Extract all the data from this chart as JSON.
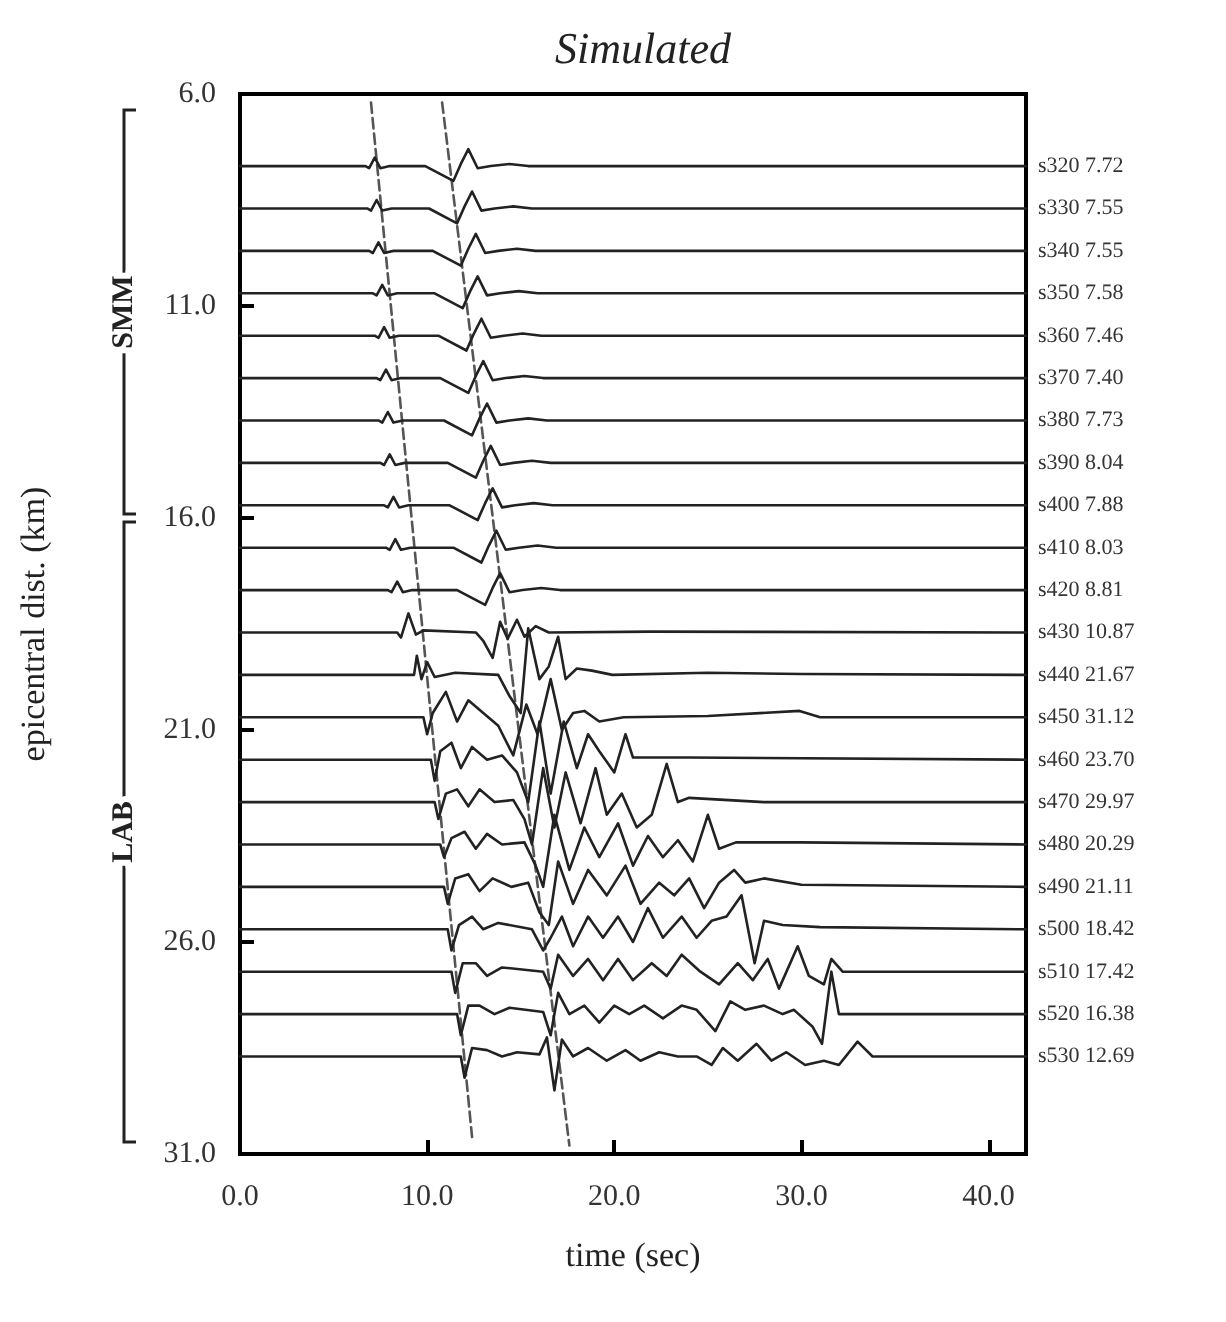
{
  "chart_data": {
    "type": "line",
    "title": "Simulated",
    "xlabel": "time (sec)",
    "ylabel": "epicentral dist. (km)",
    "xlim": [
      0,
      42
    ],
    "xticks": [
      {
        "value": 0,
        "label": "0.0"
      },
      {
        "value": 10,
        "label": "10.0"
      },
      {
        "value": 20,
        "label": "20.0"
      },
      {
        "value": 30,
        "label": "30.0"
      },
      {
        "value": 40,
        "label": "40.0"
      }
    ],
    "ylim": [
      31,
      6
    ],
    "yticks": [
      {
        "value": 6,
        "label": "6.0"
      },
      {
        "value": 11,
        "label": "11.0"
      },
      {
        "value": 16,
        "label": "16.0"
      },
      {
        "value": 21,
        "label": "21.0"
      },
      {
        "value": 26,
        "label": "26.0"
      },
      {
        "value": 31,
        "label": "31.0"
      }
    ],
    "marker": "none",
    "line_style": "solid",
    "annotations": [
      "SMM",
      "LAB"
    ],
    "series": [
      {
        "name": "s320 7.72",
        "color": "#222222",
        "x": [
          0,
          6.7,
          6.9,
          7.2,
          7.5,
          8.0,
          9.9,
          11.4,
          11.8,
          12.2,
          12.7,
          13.4,
          14.4,
          15.4,
          42
        ],
        "values": [
          7.7,
          7.7,
          7.75,
          7.5,
          7.75,
          7.7,
          7.7,
          8.05,
          7.65,
          7.3,
          7.75,
          7.7,
          7.65,
          7.7,
          7.7
        ]
      },
      {
        "name": "s330 7.55",
        "color": "#222222",
        "x": [
          0,
          6.8,
          7.0,
          7.3,
          7.6,
          8.1,
          10.1,
          11.6,
          12.0,
          12.4,
          12.9,
          13.6,
          14.6,
          15.6,
          42
        ],
        "values": [
          8.7,
          8.7,
          8.75,
          8.5,
          8.75,
          8.7,
          8.7,
          9.05,
          8.65,
          8.3,
          8.75,
          8.7,
          8.65,
          8.7,
          8.7
        ]
      },
      {
        "name": "s340 7.55",
        "color": "#222222",
        "x": [
          0,
          6.9,
          7.1,
          7.4,
          7.7,
          8.2,
          10.3,
          11.8,
          12.2,
          12.6,
          13.1,
          13.8,
          14.8,
          15.8,
          42
        ],
        "values": [
          9.7,
          9.7,
          9.75,
          9.5,
          9.75,
          9.7,
          9.7,
          10.05,
          9.65,
          9.3,
          9.75,
          9.7,
          9.65,
          9.7,
          9.7
        ]
      },
      {
        "name": "s350 7.58",
        "color": "#222222",
        "x": [
          0,
          7.1,
          7.3,
          7.6,
          7.9,
          8.4,
          10.4,
          11.9,
          12.3,
          12.7,
          13.2,
          13.9,
          14.9,
          15.9,
          42
        ],
        "values": [
          10.7,
          10.7,
          10.75,
          10.5,
          10.75,
          10.7,
          10.7,
          11.05,
          10.65,
          10.3,
          10.75,
          10.7,
          10.65,
          10.7,
          10.7
        ]
      },
      {
        "name": "s360 7.46",
        "color": "#222222",
        "x": [
          0,
          7.2,
          7.4,
          7.7,
          8.0,
          8.5,
          10.6,
          12.1,
          12.5,
          12.9,
          13.4,
          14.1,
          15.1,
          16.1,
          42
        ],
        "values": [
          11.7,
          11.7,
          11.75,
          11.5,
          11.75,
          11.7,
          11.7,
          12.05,
          11.65,
          11.3,
          11.75,
          11.7,
          11.65,
          11.7,
          11.7
        ]
      },
      {
        "name": "s370 7.40",
        "color": "#222222",
        "x": [
          0,
          7.3,
          7.5,
          7.8,
          8.1,
          8.6,
          10.7,
          12.2,
          12.6,
          13.0,
          13.5,
          14.2,
          15.2,
          16.2,
          42
        ],
        "values": [
          12.7,
          12.7,
          12.75,
          12.5,
          12.75,
          12.7,
          12.7,
          13.05,
          12.65,
          12.3,
          12.75,
          12.7,
          12.65,
          12.7,
          12.7
        ]
      },
      {
        "name": "s380 7.73",
        "color": "#222222",
        "x": [
          0,
          7.4,
          7.6,
          7.9,
          8.2,
          8.7,
          10.9,
          12.4,
          12.8,
          13.2,
          13.7,
          14.4,
          15.4,
          16.4,
          42
        ],
        "values": [
          13.7,
          13.7,
          13.75,
          13.5,
          13.75,
          13.7,
          13.7,
          14.05,
          13.65,
          13.3,
          13.75,
          13.7,
          13.65,
          13.7,
          13.7
        ]
      },
      {
        "name": "s390 8.04",
        "color": "#222222",
        "x": [
          0,
          7.5,
          7.7,
          8.0,
          8.3,
          8.8,
          11.1,
          12.6,
          13.0,
          13.4,
          13.9,
          14.6,
          15.6,
          16.6,
          42
        ],
        "values": [
          14.7,
          14.7,
          14.75,
          14.5,
          14.75,
          14.7,
          14.7,
          15.05,
          14.65,
          14.3,
          14.75,
          14.7,
          14.65,
          14.7,
          14.7
        ]
      },
      {
        "name": "s400 7.88",
        "color": "#222222",
        "x": [
          0,
          7.7,
          7.9,
          8.2,
          8.5,
          9.0,
          11.2,
          12.7,
          13.1,
          13.5,
          14.0,
          14.7,
          15.7,
          16.7,
          42
        ],
        "values": [
          15.7,
          15.7,
          15.75,
          15.5,
          15.75,
          15.7,
          15.7,
          16.05,
          15.65,
          15.3,
          15.75,
          15.7,
          15.65,
          15.7,
          15.7
        ]
      },
      {
        "name": "s410 8.03",
        "color": "#222222",
        "x": [
          0,
          7.8,
          8.0,
          8.3,
          8.6,
          9.1,
          11.4,
          12.9,
          13.3,
          13.7,
          14.2,
          14.9,
          15.9,
          16.9,
          42
        ],
        "values": [
          16.7,
          16.7,
          16.75,
          16.5,
          16.75,
          16.7,
          16.7,
          17.05,
          16.65,
          16.3,
          16.75,
          16.7,
          16.65,
          16.7,
          16.7
        ]
      },
      {
        "name": "s420 8.81",
        "color": "#222222",
        "x": [
          0,
          7.9,
          8.1,
          8.4,
          8.7,
          9.2,
          11.6,
          13.1,
          13.5,
          13.9,
          14.4,
          15.1,
          16.1,
          17.1,
          42
        ],
        "values": [
          17.7,
          17.7,
          17.75,
          17.5,
          17.75,
          17.7,
          17.7,
          18.05,
          17.65,
          17.3,
          17.75,
          17.7,
          17.65,
          17.7,
          17.7
        ]
      },
      {
        "name": "s430 10.87",
        "color": "#222222",
        "x": [
          0,
          8.4,
          8.6,
          9.0,
          9.4,
          9.8,
          12.6,
          13.0,
          13.5,
          13.9,
          14.3,
          14.8,
          15.2,
          15.8,
          16.5,
          22,
          42
        ],
        "values": [
          18.7,
          18.7,
          18.82,
          18.25,
          18.75,
          18.65,
          18.7,
          18.9,
          19.3,
          18.45,
          18.85,
          18.4,
          18.8,
          18.55,
          18.7,
          18.68,
          18.7
        ]
      },
      {
        "name": "s440 21.67",
        "color": "#222222",
        "x": [
          0,
          9.3,
          9.45,
          9.7,
          10.0,
          10.4,
          11.5,
          13.8,
          14.4,
          15.0,
          15.4,
          16.0,
          16.5,
          17.0,
          17.4,
          18.0,
          18.8,
          19.9,
          25,
          30,
          42
        ],
        "values": [
          19.7,
          19.7,
          19.25,
          19.8,
          19.4,
          19.75,
          19.65,
          19.7,
          20.2,
          20.6,
          18.6,
          19.8,
          19.5,
          18.8,
          19.8,
          19.55,
          19.6,
          19.7,
          19.65,
          19.68,
          19.7
        ]
      },
      {
        "name": "s450 31.12",
        "color": "#222222",
        "x": [
          0,
          9.8,
          10.0,
          10.3,
          11.0,
          11.6,
          12.2,
          13.0,
          13.8,
          14.6,
          15.3,
          15.9,
          16.6,
          17.2,
          17.8,
          18.4,
          19.2,
          20.5,
          25,
          29.9,
          31,
          42
        ],
        "values": [
          20.7,
          20.7,
          21.1,
          20.6,
          20.1,
          20.8,
          20.3,
          20.6,
          20.9,
          21.6,
          20.4,
          21.1,
          19.8,
          21.0,
          20.6,
          20.55,
          20.8,
          20.7,
          20.67,
          20.55,
          20.7,
          20.7
        ]
      },
      {
        "name": "s460 23.70",
        "color": "#222222",
        "x": [
          0,
          10.2,
          10.4,
          10.7,
          11.3,
          11.8,
          12.4,
          13.2,
          14.0,
          14.8,
          15.4,
          16.0,
          16.6,
          17.3,
          18.0,
          18.6,
          19.2,
          20.0,
          20.6,
          21.0,
          24,
          42
        ],
        "values": [
          21.7,
          21.7,
          22.2,
          21.5,
          21.3,
          21.9,
          21.4,
          21.7,
          21.6,
          22.0,
          22.7,
          20.8,
          22.5,
          20.8,
          21.9,
          21.1,
          21.5,
          22.0,
          21.1,
          21.65,
          21.65,
          21.7
        ]
      },
      {
        "name": "s470 29.97",
        "color": "#222222",
        "x": [
          0,
          10.4,
          10.6,
          11.0,
          11.6,
          12.2,
          12.8,
          13.6,
          14.6,
          15.2,
          15.6,
          16.2,
          16.8,
          17.4,
          18.2,
          19.0,
          19.6,
          20.4,
          21.2,
          22.0,
          22.8,
          23.4,
          24,
          28,
          42
        ],
        "values": [
          22.7,
          22.7,
          23.1,
          22.5,
          22.4,
          22.8,
          22.4,
          22.7,
          22.65,
          23.1,
          23.7,
          21.9,
          23.3,
          22.0,
          23.2,
          21.9,
          23.0,
          22.5,
          23.3,
          23.0,
          21.8,
          22.7,
          22.6,
          22.7,
          22.7
        ]
      },
      {
        "name": "s480 20.29",
        "color": "#222222",
        "x": [
          0,
          10.7,
          10.9,
          11.3,
          12.0,
          12.6,
          13.2,
          14.0,
          15.2,
          15.8,
          16.2,
          16.8,
          17.6,
          18.4,
          19.2,
          20.2,
          21.0,
          21.8,
          22.6,
          23.4,
          24.2,
          25.0,
          25.6,
          26.5,
          30,
          42
        ],
        "values": [
          23.7,
          23.7,
          24.0,
          23.55,
          23.4,
          23.8,
          23.45,
          23.7,
          23.65,
          24.2,
          24.7,
          23.0,
          24.3,
          23.3,
          24.0,
          23.2,
          24.2,
          23.5,
          24.0,
          23.6,
          24.1,
          23.0,
          23.8,
          23.65,
          23.65,
          23.7
        ]
      },
      {
        "name": "s490 21.11",
        "color": "#222222",
        "x": [
          0,
          10.9,
          11.1,
          11.5,
          12.2,
          12.8,
          13.5,
          14.5,
          15.4,
          16.0,
          16.5,
          17.0,
          17.8,
          18.6,
          19.6,
          20.6,
          21.4,
          22.4,
          23.2,
          24.0,
          24.8,
          25.6,
          26.4,
          27.0,
          28.0,
          30,
          42
        ],
        "values": [
          24.7,
          24.7,
          25.1,
          24.5,
          24.4,
          24.8,
          24.5,
          24.7,
          24.6,
          25.3,
          25.6,
          24.1,
          25.1,
          24.3,
          24.9,
          24.2,
          25.1,
          24.6,
          24.9,
          24.5,
          25.2,
          24.6,
          24.3,
          24.6,
          24.5,
          24.65,
          24.7
        ]
      },
      {
        "name": "s500 18.42",
        "color": "#222222",
        "x": [
          0,
          11.1,
          11.3,
          11.7,
          12.4,
          13.0,
          13.8,
          15.6,
          16.2,
          16.6,
          17.2,
          17.8,
          18.6,
          19.4,
          20.2,
          21.0,
          21.8,
          22.6,
          23.6,
          24.4,
          25.2,
          26.0,
          26.8,
          27.5,
          28.0,
          29,
          31,
          42
        ],
        "values": [
          25.7,
          25.7,
          26.2,
          25.6,
          25.4,
          25.7,
          25.55,
          25.7,
          26.2,
          25.9,
          25.4,
          26.1,
          25.4,
          25.9,
          25.4,
          26.0,
          25.2,
          25.9,
          25.4,
          25.9,
          25.5,
          25.4,
          24.9,
          26.5,
          25.5,
          25.6,
          25.65,
          25.7
        ]
      },
      {
        "name": "s510 17.42",
        "color": "#222222",
        "x": [
          0,
          11.3,
          11.5,
          11.9,
          12.6,
          13.2,
          14.0,
          16.2,
          16.6,
          17.0,
          17.8,
          18.6,
          19.4,
          20.2,
          21.0,
          22.0,
          22.8,
          23.6,
          24.6,
          25.6,
          26.6,
          27.4,
          28.2,
          28.8,
          29.8,
          30.4,
          31.2,
          31.6,
          32.2,
          42
        ],
        "values": [
          26.7,
          26.7,
          27.2,
          26.5,
          26.5,
          26.8,
          26.6,
          26.7,
          27.1,
          26.3,
          26.8,
          26.4,
          26.9,
          26.4,
          26.9,
          26.5,
          26.8,
          26.3,
          26.7,
          27.0,
          26.5,
          26.9,
          26.4,
          27.1,
          26.1,
          26.8,
          27.0,
          26.4,
          26.7,
          26.7
        ]
      },
      {
        "name": "s520 16.38",
        "color": "#222222",
        "x": [
          0,
          11.6,
          11.8,
          12.2,
          12.8,
          13.6,
          14.4,
          16.2,
          16.6,
          17.0,
          17.6,
          18.4,
          19.2,
          20.0,
          20.8,
          21.6,
          22.6,
          23.6,
          24.4,
          25.4,
          26.2,
          27.0,
          28.0,
          29.0,
          29.6,
          30.6,
          31.1,
          31.6,
          32.0,
          42
        ],
        "values": [
          27.7,
          27.7,
          28.2,
          27.5,
          27.5,
          27.7,
          27.55,
          27.65,
          28.2,
          27.2,
          27.7,
          27.5,
          27.9,
          27.5,
          27.7,
          27.5,
          27.8,
          27.5,
          27.6,
          28.1,
          27.4,
          27.6,
          27.5,
          27.7,
          27.6,
          28.0,
          28.4,
          26.7,
          27.7,
          27.7
        ]
      },
      {
        "name": "s530 12.69",
        "color": "#222222",
        "x": [
          0,
          11.8,
          12.0,
          12.4,
          13.2,
          14.0,
          14.8,
          16.0,
          16.4,
          16.8,
          17.2,
          17.8,
          18.6,
          19.6,
          20.6,
          21.4,
          22.4,
          23.4,
          24.4,
          25.2,
          25.8,
          26.6,
          27.6,
          28.4,
          29.2,
          30.2,
          31.2,
          32.0,
          33.0,
          33.8,
          42
        ],
        "values": [
          28.7,
          28.7,
          29.2,
          28.5,
          28.55,
          28.7,
          28.6,
          28.65,
          28.25,
          29.5,
          28.3,
          28.7,
          28.5,
          28.8,
          28.55,
          28.8,
          28.6,
          28.7,
          28.7,
          28.9,
          28.5,
          28.8,
          28.4,
          28.8,
          28.6,
          28.9,
          28.8,
          28.9,
          28.35,
          28.7,
          28.7
        ]
      },
      {
        "color": "#555555",
        "line_style": "dashed",
        "x": [
          7.0,
          12.4
        ],
        "values": [
          6.2,
          30.6
        ]
      },
      {
        "color": "#555555",
        "line_style": "dashed",
        "x": [
          10.8,
          17.6
        ],
        "values": [
          6.2,
          30.8
        ]
      }
    ]
  }
}
